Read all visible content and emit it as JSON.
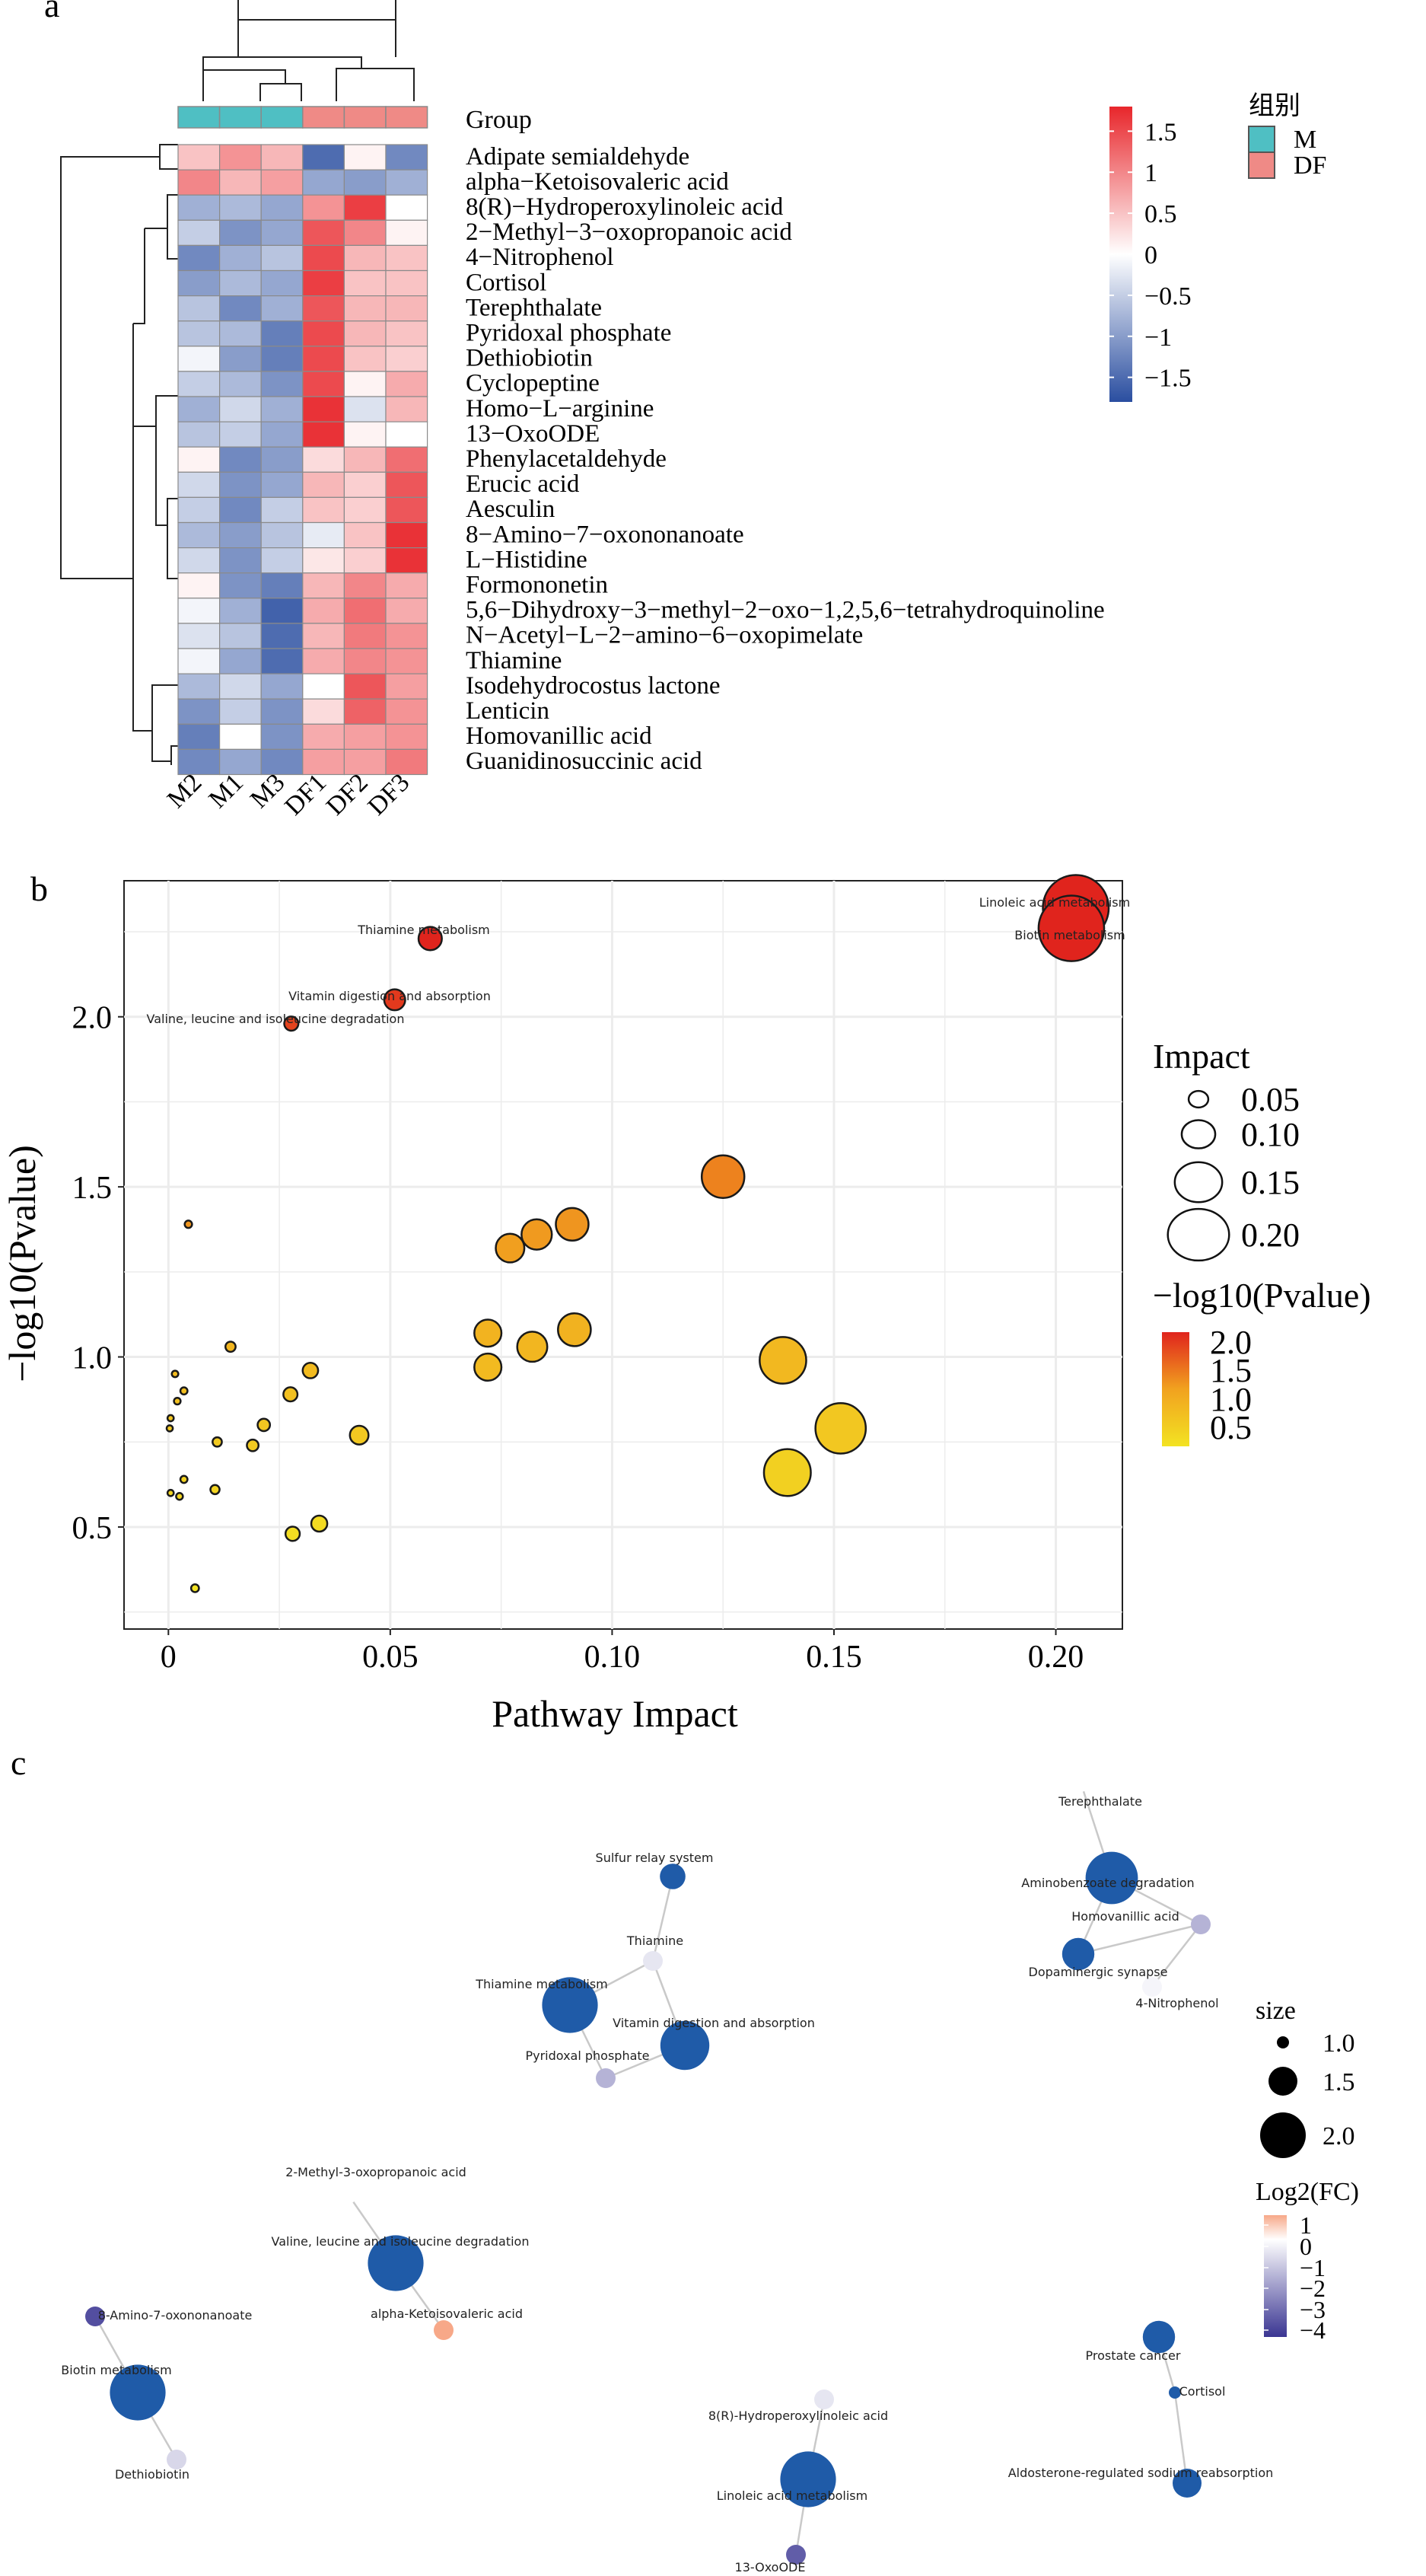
{
  "panels": {
    "a": "a",
    "b": "b",
    "c": "c"
  },
  "chart_data": [
    {
      "type": "heatmap",
      "panel": "a",
      "columns": [
        "M2",
        "M1",
        "M3",
        "DF1",
        "DF2",
        "DF3"
      ],
      "group_row_label": "Group",
      "column_groups": [
        "M",
        "M",
        "M",
        "DF",
        "DF",
        "DF"
      ],
      "rows": [
        "Adipate semialdehyde",
        "alpha−Ketoisovaleric acid",
        "8(R)−Hydroperoxylinoleic acid",
        "2−Methyl−3−oxopropanoic acid",
        "4−Nitrophenol",
        "Cortisol",
        "Terephthalate",
        "Pyridoxal phosphate",
        "Dethiobiotin",
        "Cyclopeptine",
        "Homo−L−arginine",
        "13−OxoODE",
        "Phenylacetaldehyde",
        "Erucic acid",
        "Aesculin",
        "8−Amino−7−oxononanoate",
        "L−Histidine",
        "Formononetin",
        "5,6−Dihydroxy−3−methyl−2−oxo−1,2,5,6−tetrahydroquinoline",
        "N−Acetyl−L−2−amino−6−oxopimelate",
        "Thiamine",
        "Isodehydrocostus lactone",
        "Lenticin",
        "Homovanillic acid",
        "Guanidinosuccinic acid"
      ],
      "values": [
        [
          0.5,
          0.9,
          0.6,
          -1.5,
          0.1,
          -1.2
        ],
        [
          1.0,
          0.6,
          0.8,
          -0.9,
          -1.0,
          -0.8
        ],
        [
          -0.8,
          -0.7,
          -0.9,
          0.9,
          1.6,
          0.0
        ],
        [
          -0.5,
          -1.1,
          -0.9,
          1.4,
          1.0,
          0.1
        ],
        [
          -1.2,
          -0.8,
          -0.6,
          1.5,
          0.6,
          0.5
        ],
        [
          -1.0,
          -0.7,
          -0.9,
          1.6,
          0.5,
          0.5
        ],
        [
          -0.6,
          -1.2,
          -0.8,
          1.4,
          0.6,
          0.6
        ],
        [
          -0.6,
          -0.7,
          -1.3,
          1.5,
          0.6,
          0.5
        ],
        [
          -0.1,
          -1.0,
          -1.3,
          1.5,
          0.5,
          0.4
        ],
        [
          -0.5,
          -0.7,
          -1.1,
          1.5,
          0.1,
          0.7
        ],
        [
          -0.8,
          -0.4,
          -0.8,
          1.7,
          -0.3,
          0.6
        ],
        [
          -0.6,
          -0.5,
          -0.9,
          1.7,
          0.1,
          0.0
        ],
        [
          0.1,
          -1.2,
          -1.0,
          0.3,
          0.6,
          1.2
        ],
        [
          -0.4,
          -1.1,
          -0.9,
          0.6,
          0.4,
          1.4
        ],
        [
          -0.5,
          -1.2,
          -0.5,
          0.5,
          0.4,
          1.4
        ],
        [
          -0.7,
          -1.0,
          -0.6,
          -0.2,
          0.5,
          1.7
        ],
        [
          -0.4,
          -1.1,
          -0.5,
          0.2,
          0.4,
          1.7
        ],
        [
          0.1,
          -1.1,
          -1.3,
          0.6,
          1.0,
          0.7
        ],
        [
          -0.1,
          -0.8,
          -1.6,
          0.7,
          1.2,
          0.7
        ],
        [
          -0.3,
          -0.6,
          -1.5,
          0.6,
          1.1,
          0.9
        ],
        [
          -0.1,
          -0.9,
          -1.5,
          0.7,
          1.0,
          0.9
        ],
        [
          -0.7,
          -0.4,
          -0.9,
          0.0,
          1.4,
          0.8
        ],
        [
          -1.1,
          -0.5,
          -1.1,
          0.3,
          1.3,
          0.9
        ],
        [
          -1.3,
          0.0,
          -1.1,
          0.7,
          0.8,
          0.9
        ],
        [
          -1.2,
          -0.9,
          -1.2,
          0.8,
          0.8,
          1.1
        ]
      ],
      "color_scale": {
        "low": "#2a4ea0",
        "mid": "#ffffff",
        "high": "#e8262b",
        "limits": [
          -1.8,
          1.8
        ],
        "ticks": [
          "1.5",
          "1",
          "0.5",
          "0",
          "−0.5",
          "−1",
          "−1.5"
        ],
        "tick_values": [
          1.5,
          1,
          0.5,
          0,
          -0.5,
          -1,
          -1.5
        ]
      },
      "group_legend": {
        "title": "组别",
        "items": [
          {
            "label": "M",
            "color": "#4fbfc3"
          },
          {
            "label": "DF",
            "color": "#ef8a86"
          }
        ]
      }
    },
    {
      "type": "scatter",
      "panel": "b",
      "xlabel": "Pathway Impact",
      "ylabel": "−log10(Pvalue)",
      "xlim": [
        -0.01,
        0.215
      ],
      "ylim": [
        0.2,
        2.4
      ],
      "xticks": [
        0,
        0.05,
        0.1,
        0.15,
        0.2
      ],
      "xtick_labels": [
        "0",
        "0.05",
        "0.10",
        "0.15",
        "0.20"
      ],
      "yticks": [
        0.5,
        1.0,
        1.5,
        2.0
      ],
      "ytick_labels": [
        "0.5",
        "1.0",
        "1.5",
        "2.0"
      ],
      "grid": true,
      "points": [
        {
          "x": 0.2045,
          "y": 2.32,
          "label": "Linoleic acid metabolism"
        },
        {
          "x": 0.2035,
          "y": 2.26,
          "label": "Biotin metabolism"
        },
        {
          "x": 0.059,
          "y": 2.23,
          "label": "Thiamine metabolism"
        },
        {
          "x": 0.051,
          "y": 2.05,
          "label": "Vitamin digestion and absorption"
        },
        {
          "x": 0.0277,
          "y": 1.98,
          "label": "Valine, leucine and isoleucine degradation"
        },
        {
          "x": 0.125,
          "y": 1.53,
          "label": ""
        },
        {
          "x": 0.091,
          "y": 1.39,
          "label": ""
        },
        {
          "x": 0.083,
          "y": 1.36,
          "label": ""
        },
        {
          "x": 0.077,
          "y": 1.32,
          "label": ""
        },
        {
          "x": 0.0045,
          "y": 1.39,
          "label": ""
        },
        {
          "x": 0.0915,
          "y": 1.08,
          "label": ""
        },
        {
          "x": 0.072,
          "y": 1.07,
          "label": ""
        },
        {
          "x": 0.072,
          "y": 0.97,
          "label": ""
        },
        {
          "x": 0.082,
          "y": 1.03,
          "label": ""
        },
        {
          "x": 0.1385,
          "y": 0.99,
          "label": ""
        },
        {
          "x": 0.1515,
          "y": 0.79,
          "label": ""
        },
        {
          "x": 0.1395,
          "y": 0.66,
          "label": ""
        },
        {
          "x": 0.014,
          "y": 1.03,
          "label": ""
        },
        {
          "x": 0.032,
          "y": 0.96,
          "label": ""
        },
        {
          "x": 0.0275,
          "y": 0.89,
          "label": ""
        },
        {
          "x": 0.043,
          "y": 0.77,
          "label": ""
        },
        {
          "x": 0.0215,
          "y": 0.8,
          "label": ""
        },
        {
          "x": 0.019,
          "y": 0.74,
          "label": ""
        },
        {
          "x": 0.011,
          "y": 0.75,
          "label": ""
        },
        {
          "x": 0.0035,
          "y": 0.9,
          "label": ""
        },
        {
          "x": 0.0015,
          "y": 0.95,
          "label": ""
        },
        {
          "x": 0.002,
          "y": 0.87,
          "label": ""
        },
        {
          "x": 0.0005,
          "y": 0.82,
          "label": ""
        },
        {
          "x": 0.0003,
          "y": 0.79,
          "label": ""
        },
        {
          "x": 0.0035,
          "y": 0.64,
          "label": ""
        },
        {
          "x": 0.0005,
          "y": 0.6,
          "label": ""
        },
        {
          "x": 0.0025,
          "y": 0.59,
          "label": ""
        },
        {
          "x": 0.0105,
          "y": 0.61,
          "label": ""
        },
        {
          "x": 0.034,
          "y": 0.51,
          "label": ""
        },
        {
          "x": 0.028,
          "y": 0.48,
          "label": ""
        },
        {
          "x": 0.006,
          "y": 0.32,
          "label": ""
        }
      ],
      "legend_size": {
        "title": "Impact",
        "values": [
          0.05,
          0.1,
          0.15,
          0.2
        ],
        "labels": [
          "0.05",
          "0.10",
          "0.15",
          "0.20"
        ]
      },
      "legend_color": {
        "title": "−log10(Pvalue)",
        "labels": [
          "2.0",
          "1.5",
          "1.0",
          "0.5"
        ],
        "values": [
          2.0,
          1.5,
          1.0,
          0.5
        ],
        "low": "#f3e322",
        "high": "#e0241d"
      }
    },
    {
      "type": "network",
      "panel": "c",
      "nodes": [
        {
          "id": "terephthalate",
          "label": "Terephthalate",
          "kind": "metabolite",
          "fc": 0
        },
        {
          "id": "aminobenzoate",
          "label": "Aminobenzoate degradation",
          "kind": "pathway",
          "size": 2.2
        },
        {
          "id": "homovanillic",
          "label": "Homovanillic acid",
          "kind": "metabolite",
          "fc": -1.5
        },
        {
          "id": "dopaminergic",
          "label": "Dopaminergic synapse",
          "kind": "pathway",
          "size": 1.6
        },
        {
          "id": "nitrophenol",
          "label": "4-Nitrophenol",
          "kind": "metabolite",
          "fc": -0.2
        },
        {
          "id": "sulfur",
          "label": "Sulfur relay system",
          "kind": "pathway",
          "size": 1.4
        },
        {
          "id": "thiamine",
          "label": "Thiamine",
          "kind": "metabolite",
          "fc": -0.5
        },
        {
          "id": "thiamine_met",
          "label": "Thiamine metabolism",
          "kind": "pathway",
          "size": 2.3
        },
        {
          "id": "vitamin",
          "label": "Vitamin digestion and absorption",
          "kind": "pathway",
          "size": 2.1
        },
        {
          "id": "pyridoxal",
          "label": "Pyridoxal phosphate",
          "kind": "metabolite",
          "fc": -1.5
        },
        {
          "id": "methyl",
          "label": "2-Methyl-3-oxopropanoic acid",
          "kind": "metabolite",
          "fc": 0
        },
        {
          "id": "valine",
          "label": "Valine, leucine and isoleucine degradation",
          "kind": "pathway",
          "size": 2.3
        },
        {
          "id": "ketoiso",
          "label": "alpha-Ketoisovaleric acid",
          "kind": "metabolite",
          "fc": 1.0
        },
        {
          "id": "amino7",
          "label": "8-Amino-7-oxononanoate",
          "kind": "metabolite",
          "fc": -3.5
        },
        {
          "id": "biotin",
          "label": "Biotin metabolism",
          "kind": "pathway",
          "size": 2.3
        },
        {
          "id": "dethiobiotin",
          "label": "Dethiobiotin",
          "kind": "metabolite",
          "fc": -0.8
        },
        {
          "id": "prostate",
          "label": "Prostate cancer",
          "kind": "pathway",
          "size": 1.6
        },
        {
          "id": "cortisol",
          "label": "Cortisol",
          "kind": "pathway",
          "size": 1.0
        },
        {
          "id": "aldosterone",
          "label": "Aldosterone-regulated sodium reabsorption",
          "kind": "pathway",
          "size": 1.5
        },
        {
          "id": "hydroperoxy",
          "label": "8(R)-Hydroperoxylinoleic acid",
          "kind": "metabolite",
          "fc": -0.5
        },
        {
          "id": "linoleic",
          "label": "Linoleic acid metabolism",
          "kind": "pathway",
          "size": 2.3
        },
        {
          "id": "oxoode",
          "label": "13-OxoODE",
          "kind": "metabolite",
          "fc": -3.2
        }
      ],
      "edges": [
        [
          "terephthalate",
          "aminobenzoate"
        ],
        [
          "aminobenzoate",
          "homovanillic"
        ],
        [
          "aminobenzoate",
          "dopaminergic"
        ],
        [
          "dopaminergic",
          "homovanillic"
        ],
        [
          "homovanillic",
          "nitrophenol"
        ],
        [
          "sulfur",
          "thiamine"
        ],
        [
          "thiamine",
          "thiamine_met"
        ],
        [
          "thiamine",
          "vitamin"
        ],
        [
          "thiamine_met",
          "pyridoxal"
        ],
        [
          "vitamin",
          "pyridoxal"
        ],
        [
          "methyl",
          "valine"
        ],
        [
          "valine",
          "ketoiso"
        ],
        [
          "amino7",
          "biotin"
        ],
        [
          "biotin",
          "dethiobiotin"
        ],
        [
          "prostate",
          "cortisol"
        ],
        [
          "cortisol",
          "aldosterone"
        ],
        [
          "hydroperoxy",
          "linoleic"
        ],
        [
          "linoleic",
          "oxoode"
        ]
      ],
      "pathway_color": "#1f5ba8",
      "legend_size": {
        "title": "size",
        "values": [
          1.0,
          1.5,
          2.0
        ],
        "labels": [
          "1.0",
          "1.5",
          "2.0"
        ]
      },
      "legend_color": {
        "title": "Log2(FC)",
        "labels": [
          "1",
          "0",
          "−1",
          "−2",
          "−3",
          "−4"
        ],
        "values": [
          1,
          0,
          -1,
          -2,
          -3,
          -4
        ],
        "low": "#3a3592",
        "mid": "#ffffff",
        "high": "#f7a888"
      }
    }
  ]
}
